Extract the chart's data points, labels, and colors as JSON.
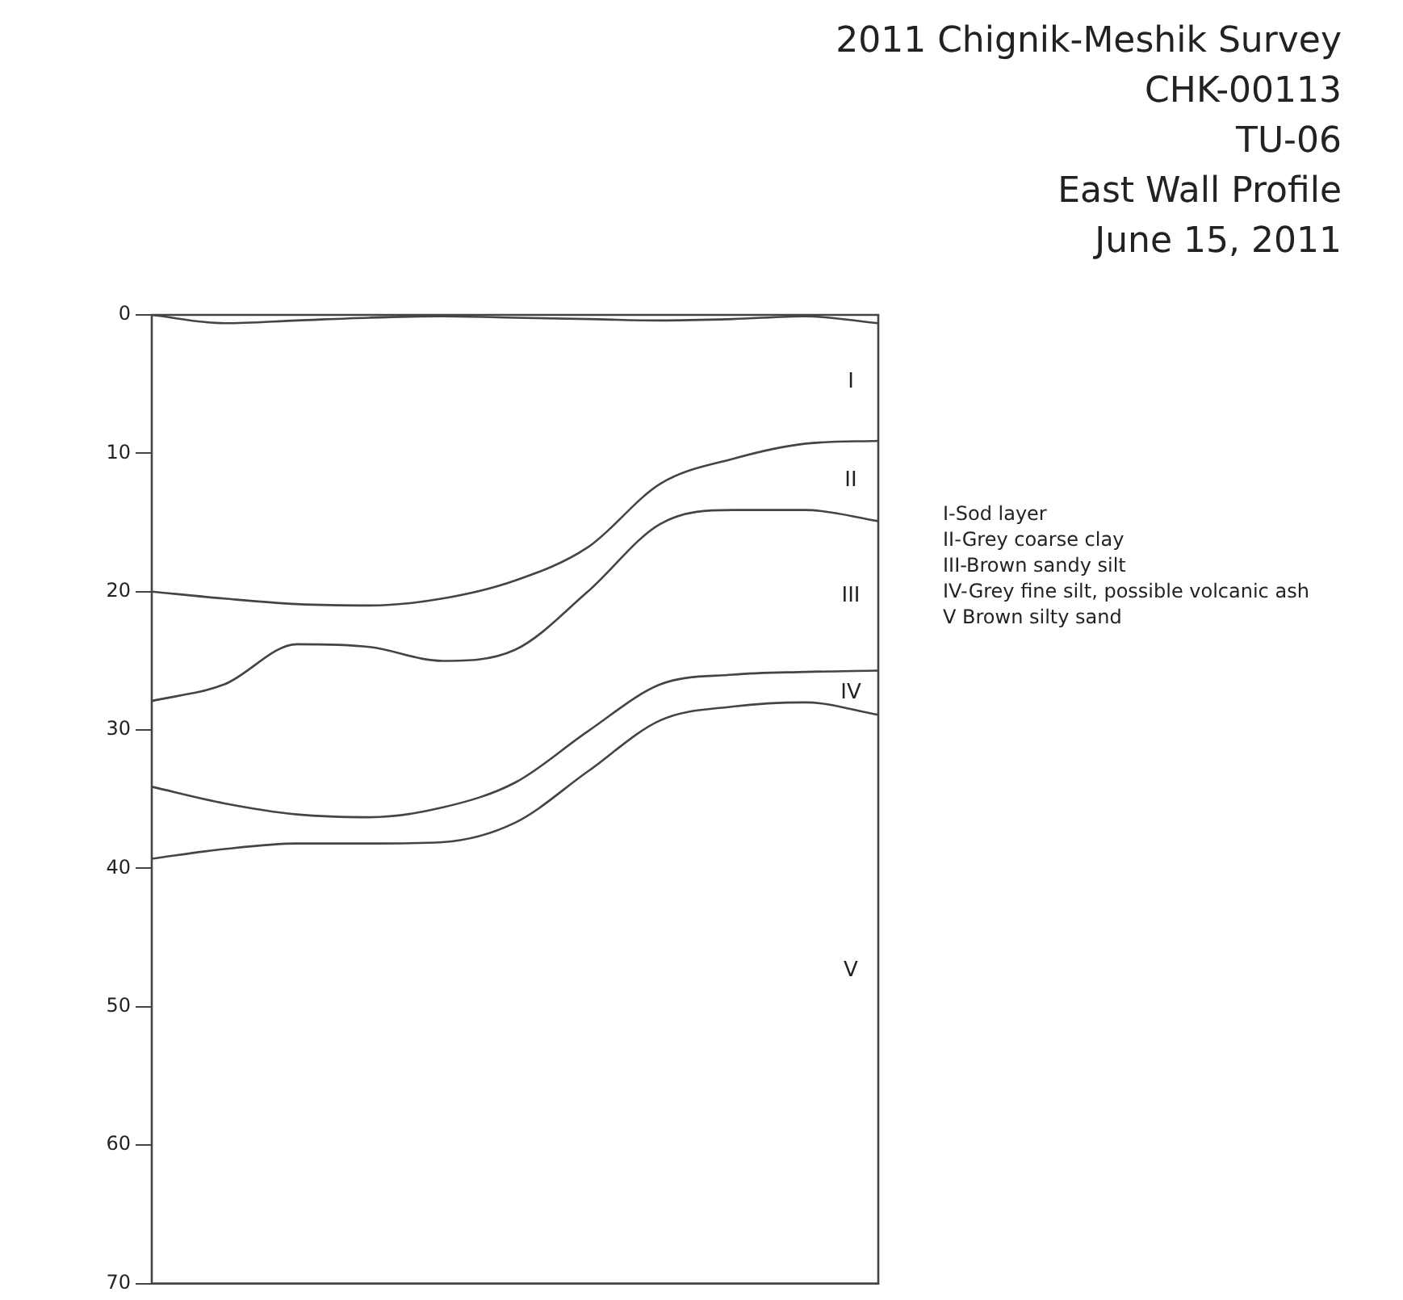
{
  "chart_data": {
    "type": "line",
    "title": "2011 Chignik-Meshik Survey",
    "subtitle": "CHK-00113\nTU-06\nEast Wall Profile\nJune 15, 2011",
    "categories": [
      null,
      null,
      null,
      null,
      null,
      null,
      null,
      null,
      null,
      null,
      null
    ],
    "series": [
      {
        "color": "#444444",
        "values": [
          0,
          0.6,
          0.4,
          0.2,
          0.1,
          0.2,
          0.3,
          0.4,
          0.3,
          0.1,
          0.6
        ]
      },
      {
        "color": "#444444",
        "values": [
          20,
          20.5,
          20.9,
          21,
          20.5,
          19.2,
          16.8,
          12.2,
          10.4,
          9.3,
          9.1
        ]
      },
      {
        "color": "#444444",
        "values": [
          27.9,
          26.7,
          23.8,
          24,
          25,
          24.2,
          20,
          15.1,
          14.1,
          14.1,
          14.9
        ]
      },
      {
        "color": "#444444",
        "values": [
          34.1,
          35.3,
          36.1,
          36.3,
          35.6,
          33.8,
          30.1,
          26.7,
          26,
          25.8,
          25.7
        ]
      },
      {
        "color": "#444444",
        "values": [
          39.3,
          38.6,
          38.2,
          38.2,
          38.1,
          36.7,
          33,
          29.3,
          28.3,
          28,
          28.9
        ]
      }
    ],
    "ylim": [
      70,
      0
    ],
    "yticks": [
      0,
      10,
      20,
      30,
      40,
      50,
      60,
      70
    ],
    "grid": false,
    "legend": false,
    "marker": "none",
    "line_style": "solid",
    "tick_labels": "y",
    "annotations": [
      "I",
      "II",
      "III",
      "IV",
      "V",
      "I-Sod layer",
      "II-Grey coarse clay",
      "III-Brown sandy silt",
      "IV-Grey fine silt, possible volcanic ash",
      "V Brown silty sand"
    ]
  }
}
